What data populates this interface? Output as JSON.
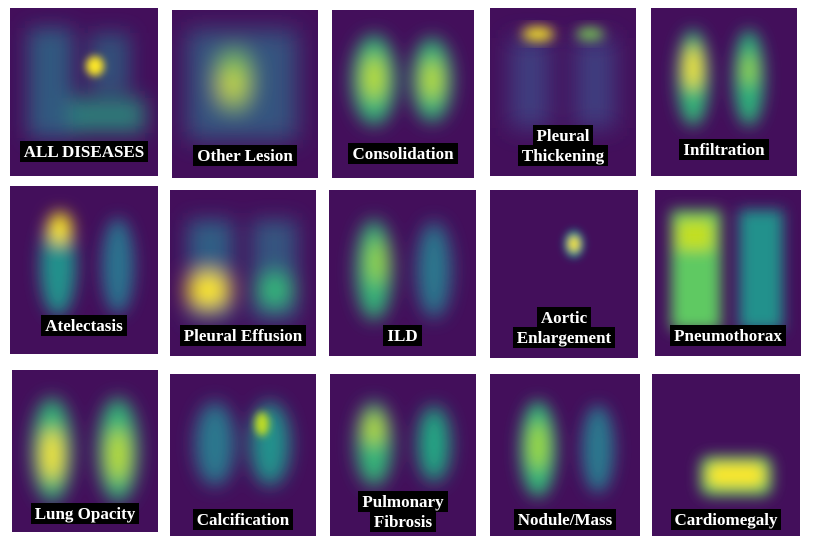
{
  "panels": [
    {
      "label": "ALL DISEASES"
    },
    {
      "label": "Other Lesion"
    },
    {
      "label": "Consolidation"
    },
    {
      "label": "Pleural\nThickening"
    },
    {
      "label": "Infiltration"
    },
    {
      "label": "Atelectasis"
    },
    {
      "label": "Pleural Effusion"
    },
    {
      "label": "ILD"
    },
    {
      "label": "Aortic\nEnlargement"
    },
    {
      "label": "Pneumothorax"
    },
    {
      "label": "Lung Opacity"
    },
    {
      "label": "Calcification"
    },
    {
      "label": "Pulmonary\nFibrosis"
    },
    {
      "label": "Nodule/Mass"
    },
    {
      "label": "Cardiomegaly"
    }
  ],
  "colors": {
    "background": "#430f5b",
    "low": "#3b528b",
    "mid": "#21918c",
    "high": "#5ec962",
    "peak": "#fde725",
    "label_bg": "#000000",
    "label_text": "#ffffff"
  }
}
